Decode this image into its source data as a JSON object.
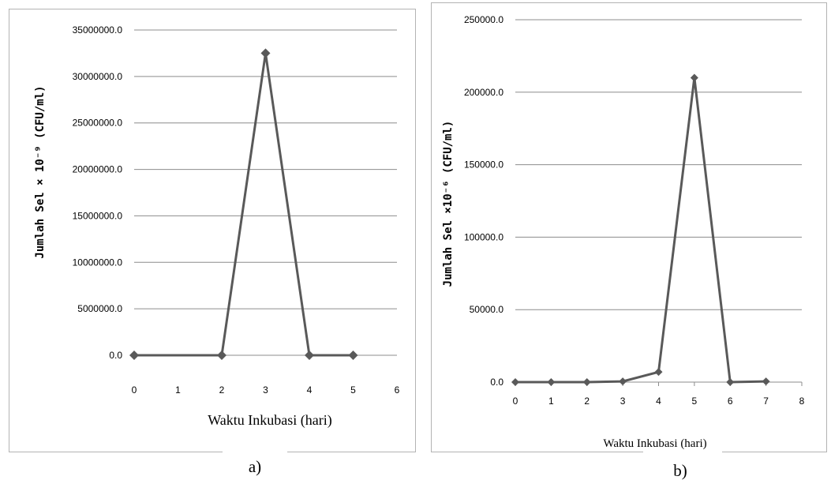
{
  "chart_data": [
    {
      "type": "line",
      "panel_label": "a)",
      "xlabel": "Waktu Inkubasi (hari)",
      "ylabel": "Jumlah Sel × 10⁻⁹ (CFU/ml)",
      "x_ticks": [
        "0",
        "1",
        "2",
        "3",
        "4",
        "5",
        "6"
      ],
      "y_ticks": [
        "0.0",
        "5000000.0",
        "10000000.0",
        "15000000.0",
        "20000000.0",
        "25000000.0",
        "30000000.0",
        "35000000.0"
      ],
      "categories": [
        "0",
        "2",
        "3",
        "4",
        "5"
      ],
      "values": [
        0,
        0,
        32500000,
        0,
        0
      ],
      "ylim": [
        0,
        35000000
      ],
      "grid": true,
      "line_color": "#595959"
    },
    {
      "type": "line",
      "panel_label": "b)",
      "xlabel": "Waktu Inkubasi (hari)",
      "ylabel": "Jumlah Sel ×10⁻⁶ (CFU/ml)",
      "x_ticks": [
        "0",
        "1",
        "2",
        "3",
        "4",
        "5",
        "6",
        "7",
        "8"
      ],
      "y_ticks": [
        "0.0",
        "50000.0",
        "100000.0",
        "150000.0",
        "200000.0",
        "250000.0"
      ],
      "x": [
        0,
        1,
        2,
        3,
        4,
        5,
        6,
        7
      ],
      "values": [
        0,
        0,
        0,
        500,
        7000,
        210000,
        0,
        500
      ],
      "xlim": [
        0,
        8
      ],
      "ylim": [
        0,
        250000
      ],
      "grid": true,
      "line_color": "#595959"
    }
  ]
}
